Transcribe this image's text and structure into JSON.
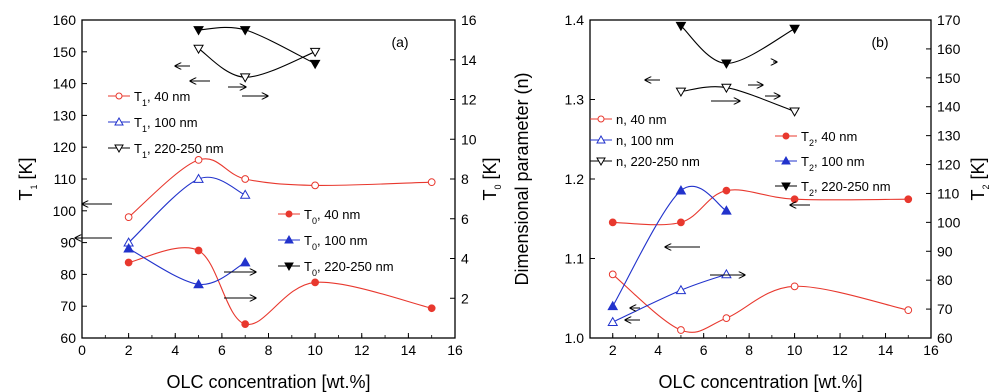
{
  "colors": {
    "red": "#e8382e",
    "blue": "#2233cc",
    "black": "#000000"
  },
  "chart_data": [
    {
      "type": "scatter",
      "panel_label": "(a)",
      "xlabel": "OLC concentration [wt.%]",
      "ylabel_left": {
        "main": "T",
        "sub": "1",
        "tail": " [K]"
      },
      "ylabel_right": {
        "main": "T",
        "sub": "0",
        "tail": " [K]"
      },
      "xlim": [
        0,
        16
      ],
      "xticks": [
        "0",
        "2",
        "4",
        "6",
        "8",
        "10",
        "12",
        "14",
        "16"
      ],
      "ylim_left": [
        60,
        160
      ],
      "yticks_left": [
        "60",
        "70",
        "80",
        "90",
        "100",
        "110",
        "120",
        "130",
        "140",
        "150",
        "160"
      ],
      "ylim_right": [
        0,
        16
      ],
      "yticks_right": [
        "2",
        "4",
        "6",
        "8",
        "10",
        "12",
        "14",
        "16"
      ],
      "series": [
        {
          "name": "T1, 40 nm",
          "leg": [
            "T",
            "1",
            ", 40 nm"
          ],
          "axis": "left",
          "color": "red",
          "marker": "circle",
          "x": [
            2,
            5,
            7,
            10,
            15
          ],
          "y": [
            98,
            116,
            110,
            108,
            109
          ]
        },
        {
          "name": "T1, 100 nm",
          "leg": [
            "T",
            "1",
            ", 100 nm"
          ],
          "axis": "left",
          "color": "blue",
          "marker": "triangle-up",
          "x": [
            2,
            5,
            7
          ],
          "y": [
            90,
            110,
            105
          ]
        },
        {
          "name": "T1, 220-250 nm",
          "leg": [
            "T",
            "1",
            ", 220-250 nm"
          ],
          "axis": "left",
          "color": "black",
          "marker": "triangle-down",
          "x": [
            5,
            7,
            10
          ],
          "y": [
            151,
            142,
            150
          ]
        },
        {
          "name": "T0, 40 nm",
          "leg": [
            "T",
            "0",
            ", 40 nm"
          ],
          "axis": "right",
          "color": "red",
          "marker": "circle",
          "x": [
            2,
            5,
            7,
            10,
            15
          ],
          "y": [
            3.8,
            4.4,
            0.7,
            2.8,
            1.5
          ]
        },
        {
          "name": "T0, 100 nm",
          "leg": [
            "T",
            "0",
            ", 100 nm"
          ],
          "axis": "right",
          "color": "blue",
          "marker": "triangle-up",
          "x": [
            2,
            5,
            7
          ],
          "y": [
            4.5,
            2.7,
            3.8
          ]
        },
        {
          "name": "T0, 220-250 nm",
          "leg": [
            "T",
            "0",
            ", 220-250 nm"
          ],
          "axis": "right",
          "color": "black",
          "marker": "triangle-down",
          "x": [
            5,
            7,
            10
          ],
          "y": [
            15.5,
            15.5,
            13.8
          ]
        }
      ]
    },
    {
      "type": "scatter",
      "panel_label": "(b)",
      "xlabel": "OLC concentration [wt.%]",
      "ylabel_left": {
        "main": "Dimensional parameter (n)",
        "sub": "",
        "tail": ""
      },
      "ylabel_right": {
        "main": "T",
        "sub": "2",
        "tail": " [K]"
      },
      "xlim": [
        1,
        16
      ],
      "xticks": [
        "2",
        "4",
        "6",
        "8",
        "10",
        "12",
        "14",
        "16"
      ],
      "ylim_left": [
        1.0,
        1.4
      ],
      "yticks_left": [
        "1.0",
        "1.1",
        "1.2",
        "1.3",
        "1.4"
      ],
      "ylim_right": [
        60,
        170
      ],
      "yticks_right": [
        "60",
        "70",
        "80",
        "90",
        "100",
        "110",
        "120",
        "130",
        "140",
        "150",
        "160",
        "170"
      ],
      "series": [
        {
          "name": "n, 40 nm",
          "leg": [
            "n, 40 nm",
            "",
            ""
          ],
          "axis": "left",
          "color": "red",
          "marker": "circle",
          "x": [
            2,
            5,
            7,
            10,
            15
          ],
          "y": [
            1.08,
            1.01,
            1.025,
            1.065,
            1.035
          ]
        },
        {
          "name": "n, 100 nm",
          "leg": [
            "n, 100 nm",
            "",
            ""
          ],
          "axis": "left",
          "color": "blue",
          "marker": "triangle-up",
          "x": [
            2,
            5,
            7
          ],
          "y": [
            1.02,
            1.06,
            1.08
          ]
        },
        {
          "name": "n, 220-250 nm",
          "leg": [
            "n, 220-250 nm",
            "",
            ""
          ],
          "axis": "left",
          "color": "black",
          "marker": "triangle-down",
          "x": [
            5,
            7,
            10
          ],
          "y": [
            1.31,
            1.315,
            1.285
          ]
        },
        {
          "name": "T2, 40 nm",
          "leg": [
            "T",
            "2",
            ", 40 nm"
          ],
          "axis": "right",
          "color": "red",
          "marker": "circle",
          "x": [
            2,
            5,
            7,
            10,
            15
          ],
          "y": [
            100,
            100,
            111,
            108,
            108
          ]
        },
        {
          "name": "T2, 100 nm",
          "leg": [
            "T",
            "2",
            ", 100 nm"
          ],
          "axis": "right",
          "color": "blue",
          "marker": "triangle-up",
          "x": [
            2,
            5,
            7
          ],
          "y": [
            71,
            111,
            104
          ]
        },
        {
          "name": "T2, 220-250 nm",
          "leg": [
            "T",
            "2",
            ", 220-250 nm"
          ],
          "axis": "right",
          "color": "black",
          "marker": "triangle-down",
          "x": [
            5,
            7,
            10
          ],
          "y": [
            168,
            155,
            167
          ]
        }
      ]
    }
  ]
}
